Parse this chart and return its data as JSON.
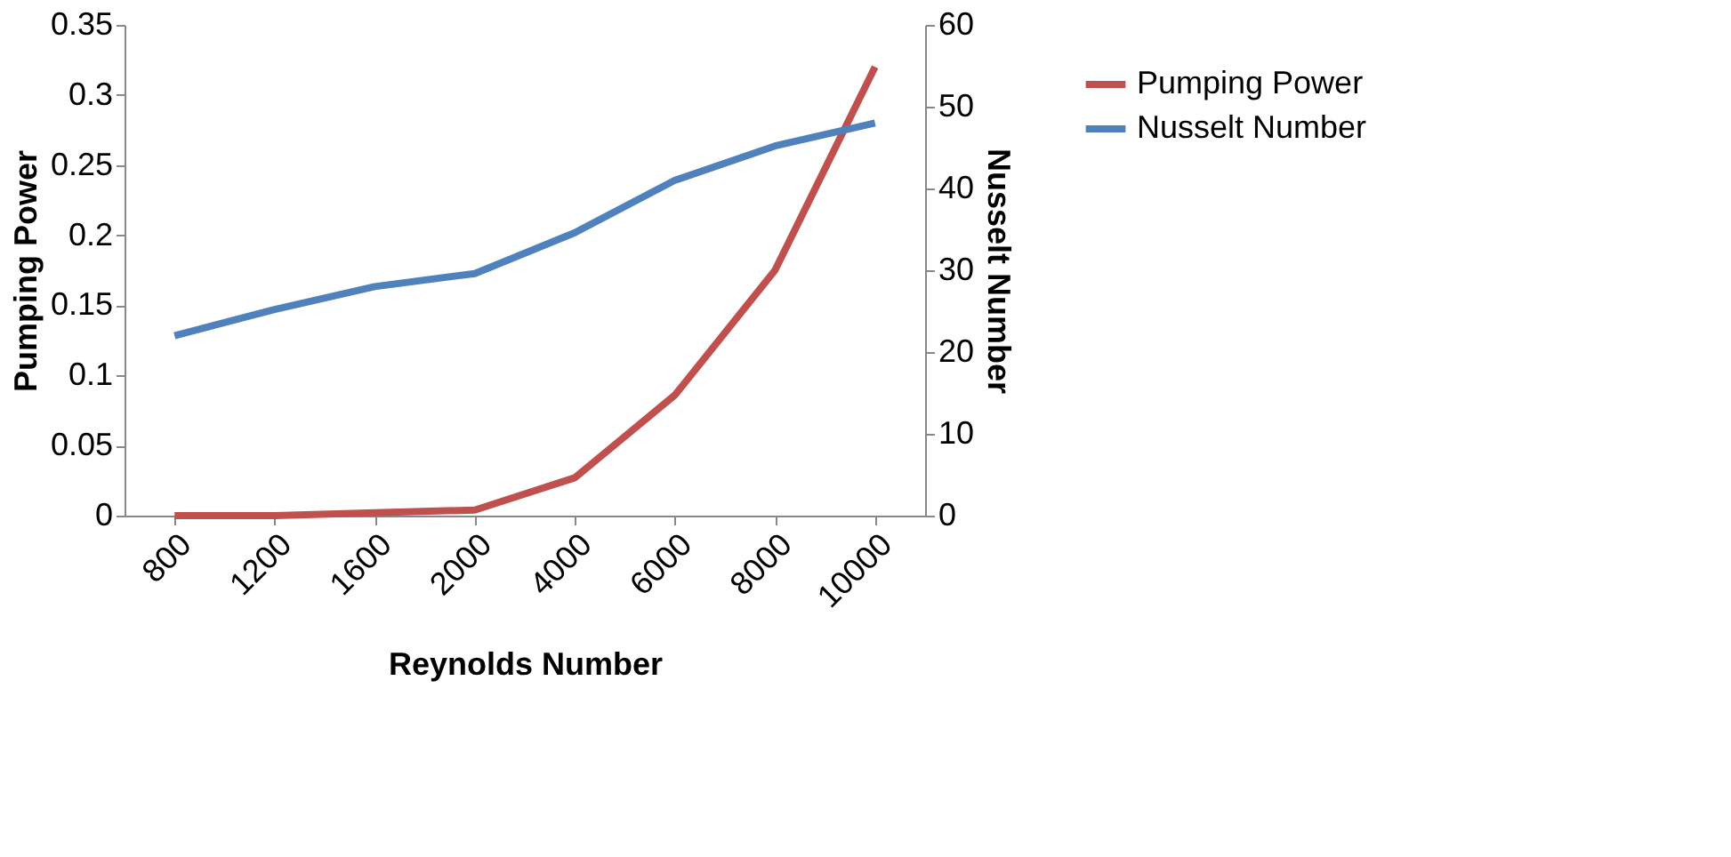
{
  "chart_data": {
    "type": "line",
    "xlabel": "Reynolds Number",
    "ylabel": "Pumping Power",
    "y2label": "Nusselt Number",
    "categories": [
      "800",
      "1200",
      "1600",
      "2000",
      "4000",
      "6000",
      "8000",
      "10000"
    ],
    "series": [
      {
        "name": "Pumping Power",
        "color": "#c0504d",
        "values": [
          0,
          0,
          0.002,
          0.004,
          0.027,
          0.086,
          0.175,
          0.32
        ]
      },
      {
        "name": "Nusselt Number",
        "color": "#4f81bd",
        "axis": "y2",
        "values": [
          22,
          25.2,
          28,
          29.6,
          34.6,
          41,
          45.2,
          48
        ]
      }
    ],
    "ylim": [
      0,
      0.35
    ],
    "yticks": [
      0,
      0.05,
      0.1,
      0.15,
      0.2,
      0.25,
      0.3,
      0.35
    ],
    "y2lim": [
      0,
      60
    ],
    "y2ticks": [
      0,
      10,
      20,
      30,
      40,
      50,
      60
    ],
    "grid": false,
    "legend": "right",
    "marker": "none",
    "line_style": "solid"
  }
}
